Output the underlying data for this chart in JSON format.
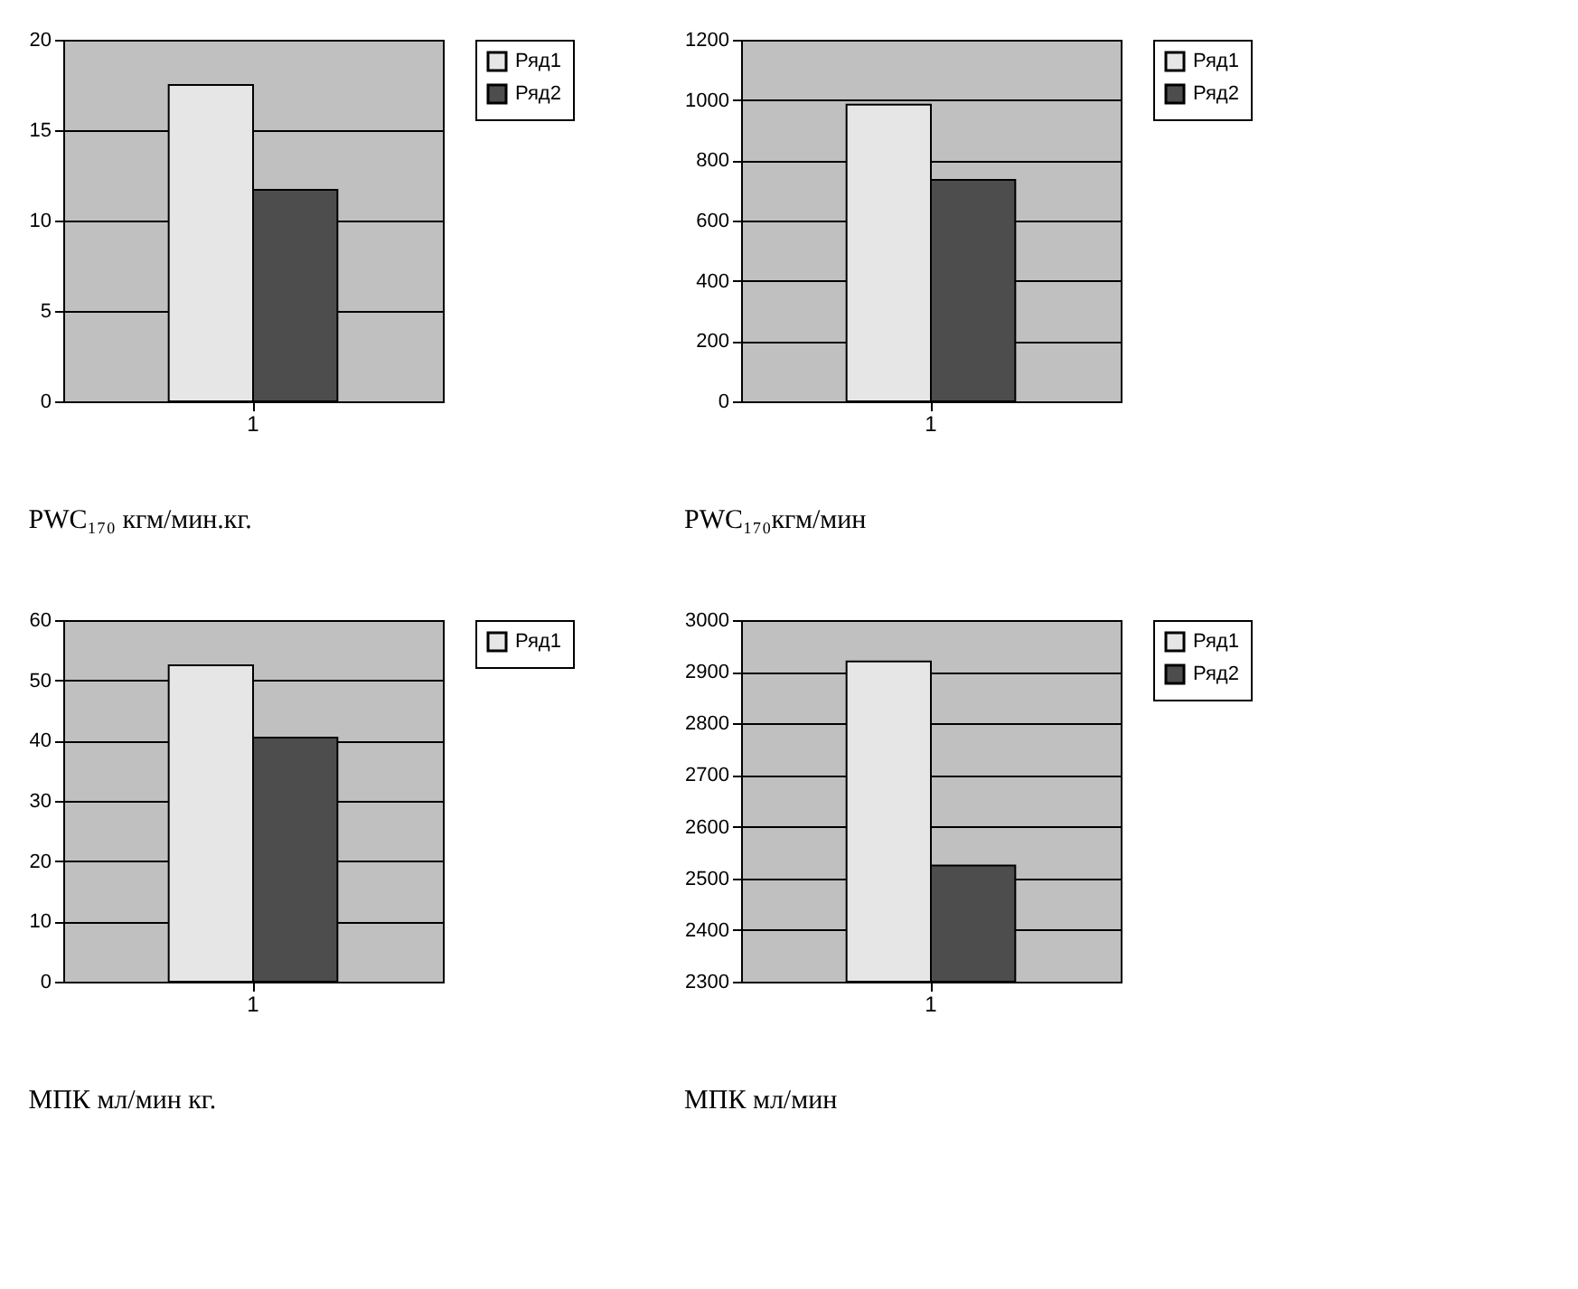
{
  "chart_data": [
    {
      "type": "bar",
      "title": "PWC₁₇₀ кгм/мин.кг.",
      "categories": [
        "1"
      ],
      "series": [
        {
          "name": "Ряд1",
          "color": "#e6e6e6",
          "values": [
            17.5
          ]
        },
        {
          "name": "Ряд2",
          "color": "#4d4d4d",
          "values": [
            11.7
          ]
        }
      ],
      "ylim": [
        0,
        20
      ],
      "yticks": [
        0,
        5,
        10,
        15,
        20
      ],
      "grid": "y",
      "legend": "right"
    },
    {
      "type": "bar",
      "title": "PWC₁₇₀кгм/мин",
      "categories": [
        "1"
      ],
      "series": [
        {
          "name": "Ряд1",
          "color": "#e6e6e6",
          "values": [
            985
          ]
        },
        {
          "name": "Ряд2",
          "color": "#4d4d4d",
          "values": [
            735
          ]
        }
      ],
      "ylim": [
        0,
        1200
      ],
      "yticks": [
        0,
        200,
        400,
        600,
        800,
        1000,
        1200
      ],
      "grid": "y",
      "legend": "right"
    },
    {
      "type": "bar",
      "title": "МПК мл/мин кг.",
      "categories": [
        "1"
      ],
      "series": [
        {
          "name": "Ряд1",
          "color": "#e6e6e6",
          "values": [
            52.5
          ]
        },
        {
          "color": "#4d4d4d",
          "values": [
            40.5
          ]
        }
      ],
      "ylim": [
        0,
        60
      ],
      "yticks": [
        0,
        10,
        20,
        30,
        40,
        50,
        60
      ],
      "grid": "y",
      "legend": "right"
    },
    {
      "type": "bar",
      "title": "МПК мл/мин",
      "categories": [
        "1"
      ],
      "series": [
        {
          "name": "Ряд1",
          "color": "#e6e6e6",
          "values": [
            2920
          ]
        },
        {
          "name": "Ряд2",
          "color": "#4d4d4d",
          "values": [
            2525
          ]
        }
      ],
      "ylim": [
        2300,
        3000
      ],
      "yticks": [
        2300,
        2400,
        2500,
        2600,
        2700,
        2800,
        2900,
        3000
      ],
      "grid": "y",
      "legend": "right"
    }
  ]
}
